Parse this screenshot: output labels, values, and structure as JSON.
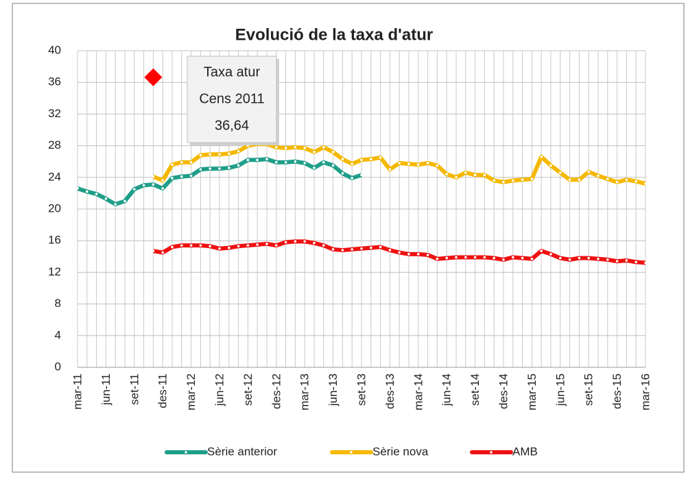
{
  "chart_data": {
    "type": "line",
    "title": "Evolució de la taxa d'atur",
    "categories": [
      "mar-11",
      null,
      null,
      "jun-11",
      null,
      null,
      "set-11",
      null,
      null,
      "des-11",
      null,
      null,
      "mar-12",
      null,
      null,
      "jun-12",
      null,
      null,
      "set-12",
      null,
      null,
      "des-12",
      null,
      null,
      "mar-13",
      null,
      null,
      "jun-13",
      null,
      null,
      "set-13",
      null,
      null,
      "des-13",
      null,
      null,
      "mar-14",
      null,
      null,
      "jun-14",
      null,
      null,
      "set-14",
      null,
      null,
      "des-14",
      null,
      null,
      "mar-15",
      null,
      null,
      "jun-15",
      null,
      null,
      "set-15",
      null,
      null,
      "des-15",
      null,
      null,
      "mar-16"
    ],
    "series": [
      {
        "name": "Sèrie anterior",
        "color": "#1f9e89",
        "values": [
          22.6,
          22.2,
          21.9,
          21.3,
          20.6,
          21.0,
          22.5,
          23.0,
          23.1,
          22.6,
          23.9,
          24.1,
          24.2,
          25.0,
          25.1,
          25.1,
          25.2,
          25.5,
          26.2,
          26.2,
          26.3,
          25.9,
          25.9,
          26.0,
          25.8,
          25.2,
          25.9,
          25.5,
          24.5,
          23.9,
          24.3,
          null,
          null,
          null,
          null,
          null,
          null,
          null,
          null,
          null,
          null,
          null,
          null,
          null,
          null,
          null,
          null,
          null,
          null,
          null,
          null,
          null,
          null,
          null,
          null,
          null,
          null,
          null,
          null,
          null,
          null
        ]
      },
      {
        "name": "Sèrie nova",
        "color": "#f5b800",
        "values": [
          null,
          null,
          null,
          null,
          null,
          null,
          null,
          null,
          24.1,
          23.6,
          25.6,
          25.9,
          25.9,
          26.8,
          26.9,
          26.9,
          27.0,
          27.3,
          28.0,
          28.2,
          28.2,
          27.8,
          27.7,
          27.8,
          27.7,
          27.2,
          27.8,
          27.2,
          26.3,
          25.7,
          26.2,
          26.3,
          26.5,
          25.0,
          25.8,
          25.7,
          25.6,
          25.8,
          25.5,
          24.4,
          24.0,
          24.6,
          24.3,
          24.3,
          23.6,
          23.4,
          23.6,
          23.7,
          23.8,
          26.6,
          25.5,
          24.6,
          23.7,
          23.7,
          24.7,
          24.2,
          23.8,
          23.4,
          23.7,
          23.5,
          23.2
        ]
      },
      {
        "name": "AMB",
        "color": "#ee1111",
        "values": [
          null,
          null,
          null,
          null,
          null,
          null,
          null,
          null,
          14.7,
          14.5,
          15.2,
          15.4,
          15.4,
          15.4,
          15.3,
          15.0,
          15.1,
          15.3,
          15.4,
          15.5,
          15.6,
          15.4,
          15.8,
          15.9,
          15.9,
          15.7,
          15.4,
          14.9,
          14.8,
          14.9,
          15.0,
          15.1,
          15.2,
          14.8,
          14.5,
          14.3,
          14.3,
          14.2,
          13.7,
          13.8,
          13.9,
          13.9,
          13.9,
          13.9,
          13.8,
          13.6,
          13.9,
          13.8,
          13.7,
          14.7,
          14.3,
          13.8,
          13.6,
          13.8,
          13.8,
          13.7,
          13.6,
          13.4,
          13.5,
          13.3,
          13.2
        ]
      }
    ],
    "marker": {
      "lines": [
        "Taxa atur",
        "Cens 2011"
      ],
      "color": "#ff0000",
      "values": [
        null,
        null,
        null,
        null,
        null,
        null,
        null,
        null,
        36.64,
        null,
        null,
        null,
        null,
        null,
        null,
        null,
        null,
        null,
        null,
        null,
        null,
        null,
        null,
        null,
        null,
        null,
        null,
        null,
        null,
        null,
        null,
        null,
        null,
        null,
        null,
        null,
        null,
        null,
        null,
        null,
        null,
        null,
        null,
        null,
        null,
        null,
        null,
        null,
        null,
        null,
        null,
        null,
        null,
        null,
        null,
        null,
        null,
        null,
        null,
        null,
        null
      ],
      "value_labels": [
        null,
        null,
        null,
        null,
        null,
        null,
        null,
        null,
        "36,64",
        null,
        null,
        null,
        null,
        null,
        null,
        null,
        null,
        null,
        null,
        null,
        null,
        null,
        null,
        null,
        null,
        null,
        null,
        null,
        null,
        null,
        null,
        null,
        null,
        null,
        null,
        null,
        null,
        null,
        null,
        null,
        null,
        null,
        null,
        null,
        null,
        null,
        null,
        null,
        null,
        null,
        null,
        null,
        null,
        null,
        null,
        null,
        null,
        null,
        null,
        null,
        null
      ]
    },
    "ylim": [
      0,
      40
    ],
    "yticks": [
      0,
      4,
      8,
      12,
      16,
      20,
      24,
      28,
      32,
      36,
      40
    ],
    "grid": true,
    "legend": "bottom"
  }
}
